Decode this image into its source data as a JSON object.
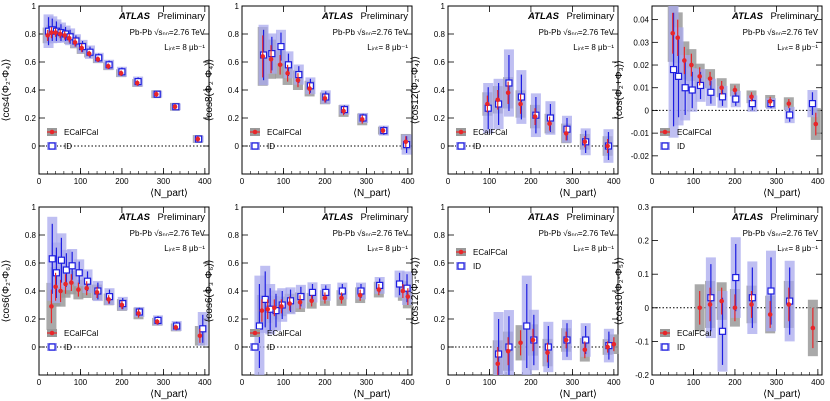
{
  "figure": {
    "header_italic": "ATLAS",
    "header_label": "Preliminary",
    "collision_text": "Pb-Pb √sₙₙ=2.76 TeV",
    "lumi_text": "Lᵢₙₜ= 8 μb⁻¹",
    "legend": [
      "ECalFCal",
      "ID"
    ]
  },
  "colors": {
    "ecal_marker": "#e8262a",
    "ecal_band": "#9a9a9a",
    "id_marker": "#1d1de0",
    "id_band": "#aaaaee"
  },
  "chart_data": [
    {
      "type": "scatter",
      "ylabel": "⟨cos4(Φ₂-Φ₄)⟩",
      "xlabel": "⟨N_part⟩",
      "xlim": [
        0,
        410
      ],
      "ylim": [
        -0.2,
        1.0
      ],
      "yticks": [
        0,
        0.2,
        0.4,
        0.6,
        0.8,
        1
      ],
      "ytick_labels": [
        "0",
        "0.2",
        "0.4",
        "0.6",
        "0.8",
        "1"
      ],
      "xticks": [
        0,
        100,
        200,
        300,
        400
      ],
      "xtick_labels": [
        "0",
        "100",
        "200",
        "300",
        "400"
      ],
      "legend_pos": "bottom-left",
      "series": [
        {
          "name": "ECalFCal",
          "x": [
            21,
            30,
            40,
            51,
            62,
            73,
            87,
            103,
            121,
            142,
            167,
            198,
            237,
            283,
            328,
            383
          ],
          "y": [
            0.79,
            0.81,
            0.81,
            0.8,
            0.79,
            0.77,
            0.74,
            0.7,
            0.66,
            0.62,
            0.57,
            0.52,
            0.45,
            0.37,
            0.28,
            0.05
          ],
          "err": [
            0.04,
            0.04,
            0.03,
            0.03,
            0.03,
            0.03,
            0.03,
            0.03,
            0.02,
            0.02,
            0.02,
            0.02,
            0.02,
            0.02,
            0.02,
            0.02
          ]
        },
        {
          "name": "ID",
          "x": [
            23,
            32,
            42,
            53,
            64,
            75,
            89,
            105,
            123,
            144,
            169,
            200,
            239,
            285,
            330,
            385
          ],
          "y": [
            0.82,
            0.83,
            0.82,
            0.81,
            0.8,
            0.78,
            0.75,
            0.71,
            0.67,
            0.63,
            0.58,
            0.53,
            0.46,
            0.37,
            0.28,
            0.05
          ],
          "err": [
            0.1,
            0.08,
            0.07,
            0.06,
            0.05,
            0.05,
            0.04,
            0.04,
            0.04,
            0.03,
            0.03,
            0.03,
            0.03,
            0.02,
            0.02,
            0.02
          ]
        }
      ]
    },
    {
      "type": "scatter",
      "ylabel": "⟨cos8(Φ₂-Φ₄)⟩",
      "xlabel": "⟨N_part⟩",
      "xlim": [
        0,
        410
      ],
      "ylim": [
        -0.2,
        1.0
      ],
      "yticks": [
        0,
        0.2,
        0.4,
        0.6,
        0.8,
        1
      ],
      "ytick_labels": [
        "0",
        "0.2",
        "0.4",
        "0.6",
        "0.8",
        "1"
      ],
      "xticks": [
        0,
        100,
        200,
        300,
        400
      ],
      "xtick_labels": [
        "0",
        "100",
        "200",
        "300",
        "400"
      ],
      "legend_pos": "bottom-left",
      "series": [
        {
          "name": "ECalFCal",
          "x": [
            50,
            70,
            92,
            110,
            135,
            163,
            200,
            245,
            290,
            340,
            395
          ],
          "y": [
            0.64,
            0.62,
            0.58,
            0.52,
            0.47,
            0.41,
            0.34,
            0.25,
            0.19,
            0.11,
            0.03
          ],
          "err": [
            0.15,
            0.1,
            0.07,
            0.06,
            0.05,
            0.04,
            0.03,
            0.03,
            0.03,
            0.02,
            0.04
          ]
        },
        {
          "name": "ID",
          "x": [
            52,
            72,
            94,
            112,
            137,
            165,
            202,
            247,
            292,
            342,
            397
          ],
          "y": [
            0.65,
            0.66,
            0.71,
            0.58,
            0.51,
            0.43,
            0.35,
            0.26,
            0.2,
            0.11,
            0.01
          ],
          "err": [
            0.18,
            0.12,
            0.1,
            0.08,
            0.06,
            0.05,
            0.04,
            0.03,
            0.03,
            0.03,
            0.06
          ]
        }
      ]
    },
    {
      "type": "scatter",
      "ylabel": "⟨cos12(Φ₂-Φ₄)⟩",
      "xlabel": "⟨N_part⟩",
      "xlim": [
        0,
        410
      ],
      "ylim": [
        -0.2,
        1.0
      ],
      "yticks": [
        0,
        0.2,
        0.4,
        0.6,
        0.8,
        1
      ],
      "ytick_labels": [
        "0",
        "0.2",
        "0.4",
        "0.6",
        "0.8",
        "1"
      ],
      "xticks": [
        0,
        100,
        200,
        300,
        400
      ],
      "xtick_labels": [
        "0",
        "100",
        "200",
        "300",
        "400"
      ],
      "legend_pos": "bottom-left",
      "series": [
        {
          "name": "ECalFCal",
          "x": [
            95,
            120,
            145,
            175,
            210,
            245,
            285,
            330,
            385
          ],
          "y": [
            0.3,
            0.33,
            0.38,
            0.3,
            0.21,
            0.16,
            0.09,
            0.03,
            0.0
          ],
          "err": [
            0.06,
            0.07,
            0.08,
            0.07,
            0.06,
            0.05,
            0.05,
            0.04,
            0.05
          ]
        },
        {
          "name": "ID",
          "x": [
            97,
            122,
            147,
            177,
            212,
            247,
            287,
            332,
            387
          ],
          "y": [
            0.27,
            0.3,
            0.45,
            0.35,
            0.22,
            0.2,
            0.12,
            0.03,
            0.0
          ],
          "err": [
            0.15,
            0.15,
            0.2,
            0.16,
            0.13,
            0.1,
            0.08,
            0.08,
            0.1
          ]
        }
      ]
    },
    {
      "type": "scatter",
      "ylabel": "⟨cos(Φ₂+Φ₃)⟩",
      "xlabel": "⟨N_part⟩",
      "xlim": [
        0,
        410
      ],
      "ylim": [
        -0.028,
        0.046
      ],
      "yticks": [
        -0.02,
        -0.01,
        0,
        0.01,
        0.02,
        0.03,
        0.04
      ],
      "ytick_labels": [
        "-0.02",
        "-0.01",
        "0",
        "0.01",
        "0.02",
        "0.03",
        "0.04"
      ],
      "xticks": [
        0,
        100,
        200,
        300,
        400
      ],
      "xtick_labels": [
        "0",
        "100",
        "200",
        "300",
        "400"
      ],
      "legend_pos": "bottom-left",
      "series": [
        {
          "name": "ECalFCal",
          "x": [
            50,
            62,
            78,
            95,
            115,
            140,
            168,
            200,
            240,
            285,
            330,
            395
          ],
          "y": [
            0.034,
            0.032,
            0.022,
            0.02,
            0.015,
            0.014,
            0.01,
            0.009,
            0.006,
            0.004,
            0.003,
            -0.006
          ],
          "err": [
            0.009,
            0.008,
            0.006,
            0.005,
            0.004,
            0.003,
            0.003,
            0.002,
            0.002,
            0.002,
            0.002,
            0.005
          ]
        },
        {
          "name": "ID",
          "x": [
            52,
            64,
            80,
            97,
            117,
            142,
            170,
            202,
            242,
            287,
            332,
            387
          ],
          "y": [
            0.018,
            0.015,
            0.01,
            0.009,
            0.011,
            0.008,
            0.006,
            0.005,
            0.003,
            0.003,
            -0.002,
            0.003
          ],
          "err": [
            0.025,
            0.018,
            0.012,
            0.008,
            0.006,
            0.005,
            0.004,
            0.003,
            0.003,
            0.002,
            0.003,
            0.005
          ]
        }
      ]
    },
    {
      "type": "scatter",
      "ylabel": "⟨cos6(Φ₂-Φ₆)⟩",
      "xlabel": "⟨N_part⟩",
      "xlim": [
        0,
        410
      ],
      "ylim": [
        -0.2,
        1.0
      ],
      "yticks": [
        0,
        0.2,
        0.4,
        0.6,
        0.8,
        1
      ],
      "ytick_labels": [
        "0",
        "0.2",
        "0.4",
        "0.6",
        "0.8",
        "1"
      ],
      "xticks": [
        0,
        100,
        200,
        300,
        400
      ],
      "xtick_labels": [
        "0",
        "100",
        "200",
        "300",
        "400"
      ],
      "legend_pos": "bottom-left",
      "series": [
        {
          "name": "ECalFCal",
          "x": [
            30,
            40,
            52,
            64,
            78,
            95,
            115,
            140,
            168,
            200,
            240,
            285,
            330,
            388
          ],
          "y": [
            0.29,
            0.43,
            0.4,
            0.45,
            0.46,
            0.41,
            0.42,
            0.39,
            0.34,
            0.3,
            0.24,
            0.18,
            0.14,
            0.08
          ],
          "err": [
            0.12,
            0.1,
            0.08,
            0.07,
            0.06,
            0.05,
            0.05,
            0.04,
            0.03,
            0.03,
            0.03,
            0.02,
            0.02,
            0.05
          ]
        },
        {
          "name": "ID",
          "x": [
            32,
            42,
            54,
            66,
            80,
            97,
            117,
            142,
            170,
            202,
            242,
            287,
            332,
            395
          ],
          "y": [
            0.63,
            0.53,
            0.62,
            0.55,
            0.58,
            0.53,
            0.47,
            0.4,
            0.36,
            0.31,
            0.25,
            0.19,
            0.15,
            0.13
          ],
          "err": [
            0.25,
            0.18,
            0.16,
            0.12,
            0.1,
            0.08,
            0.07,
            0.06,
            0.05,
            0.04,
            0.03,
            0.03,
            0.03,
            0.1
          ]
        }
      ]
    },
    {
      "type": "scatter",
      "ylabel": "⟨cos6(Φ₃-Φ₆)⟩",
      "xlabel": "⟨N_part⟩",
      "xlim": [
        0,
        410
      ],
      "ylim": [
        -0.2,
        1.0
      ],
      "yticks": [
        0,
        0.2,
        0.4,
        0.6,
        0.8,
        1
      ],
      "ytick_labels": [
        "0",
        "0.2",
        "0.4",
        "0.6",
        "0.8",
        "1"
      ],
      "xticks": [
        0,
        100,
        200,
        300,
        400
      ],
      "xtick_labels": [
        "0",
        "100",
        "200",
        "300",
        "400"
      ],
      "legend_pos": "bottom-left",
      "series": [
        {
          "name": "ECalFCal",
          "x": [
            48,
            62,
            78,
            95,
            115,
            140,
            168,
            200,
            240,
            285,
            330,
            388,
            400
          ],
          "y": [
            0.26,
            0.27,
            0.28,
            0.29,
            0.31,
            0.32,
            0.33,
            0.35,
            0.35,
            0.37,
            0.41,
            0.4,
            0.36
          ],
          "err": [
            0.08,
            0.07,
            0.06,
            0.05,
            0.05,
            0.05,
            0.04,
            0.04,
            0.04,
            0.04,
            0.04,
            0.05,
            0.06
          ]
        },
        {
          "name": "ID",
          "x": [
            42,
            56,
            68,
            82,
            97,
            117,
            142,
            170,
            202,
            242,
            287,
            332,
            380,
            398
          ],
          "y": [
            0.15,
            0.34,
            0.27,
            0.26,
            0.3,
            0.33,
            0.36,
            0.39,
            0.39,
            0.4,
            0.4,
            0.44,
            0.45,
            0.42
          ],
          "err": [
            0.3,
            0.2,
            0.15,
            0.12,
            0.1,
            0.08,
            0.07,
            0.06,
            0.05,
            0.05,
            0.05,
            0.05,
            0.08,
            0.1
          ]
        }
      ]
    },
    {
      "type": "scatter",
      "ylabel": "⟨cos12(Φ₃-Φ₄)⟩",
      "xlabel": "⟨N_part⟩",
      "xlim": [
        0,
        410
      ],
      "ylim": [
        -0.2,
        1.0
      ],
      "yticks": [
        0,
        0.2,
        0.4,
        0.6,
        0.8,
        1
      ],
      "ytick_labels": [
        "0",
        "0.2",
        "0.4",
        "0.6",
        "0.8",
        "1"
      ],
      "xticks": [
        0,
        100,
        200,
        300,
        400
      ],
      "xtick_labels": [
        "0",
        "100",
        "200",
        "300",
        "400"
      ],
      "legend_pos": "top-left",
      "series": [
        {
          "name": "ECalFCal",
          "x": [
            120,
            145,
            175,
            205,
            240,
            285,
            330,
            385,
            400
          ],
          "y": [
            -0.12,
            -0.03,
            0.03,
            0.05,
            -0.04,
            0.05,
            -0.02,
            0.0,
            0.02
          ],
          "err": [
            0.12,
            0.1,
            0.09,
            0.08,
            0.07,
            0.06,
            0.06,
            0.04,
            0.05
          ]
        },
        {
          "name": "ID",
          "x": [
            122,
            147,
            190,
            207,
            242,
            287,
            332,
            388
          ],
          "y": [
            -0.05,
            0.0,
            0.15,
            0.05,
            0.0,
            0.05,
            0.05,
            0.01
          ],
          "err": [
            0.25,
            0.22,
            0.3,
            0.18,
            0.15,
            0.12,
            0.1,
            0.1
          ]
        }
      ]
    },
    {
      "type": "scatter",
      "ylabel": "⟨cos10(Φ₂-Φ₅)⟩",
      "xlabel": "⟨N_part⟩",
      "xlim": [
        0,
        410
      ],
      "ylim": [
        -0.2,
        0.3
      ],
      "yticks": [
        -0.2,
        -0.1,
        0,
        0.1,
        0.2,
        0.3
      ],
      "ytick_labels": [
        "-0.2",
        "-0.1",
        "0",
        "0.1",
        "0.2",
        "0.3"
      ],
      "xticks": [
        0,
        100,
        200,
        300,
        400
      ],
      "xtick_labels": [
        "0",
        "100",
        "200",
        "300",
        "400"
      ],
      "legend_pos": "bottom-left",
      "series": [
        {
          "name": "ECalFCal",
          "x": [
            115,
            140,
            168,
            200,
            240,
            285,
            330,
            388
          ],
          "y": [
            0.0,
            0.01,
            0.02,
            0.0,
            0.01,
            -0.02,
            0.01,
            -0.06
          ],
          "err": [
            0.05,
            0.05,
            0.04,
            0.04,
            0.04,
            0.04,
            0.05,
            0.06
          ]
        },
        {
          "name": "ID",
          "x": [
            142,
            170,
            202,
            242,
            287,
            332
          ],
          "y": [
            0.03,
            -0.07,
            0.09,
            0.03,
            0.05,
            0.02
          ],
          "err": [
            0.1,
            0.1,
            0.1,
            0.09,
            0.1,
            0.1
          ]
        }
      ]
    }
  ]
}
